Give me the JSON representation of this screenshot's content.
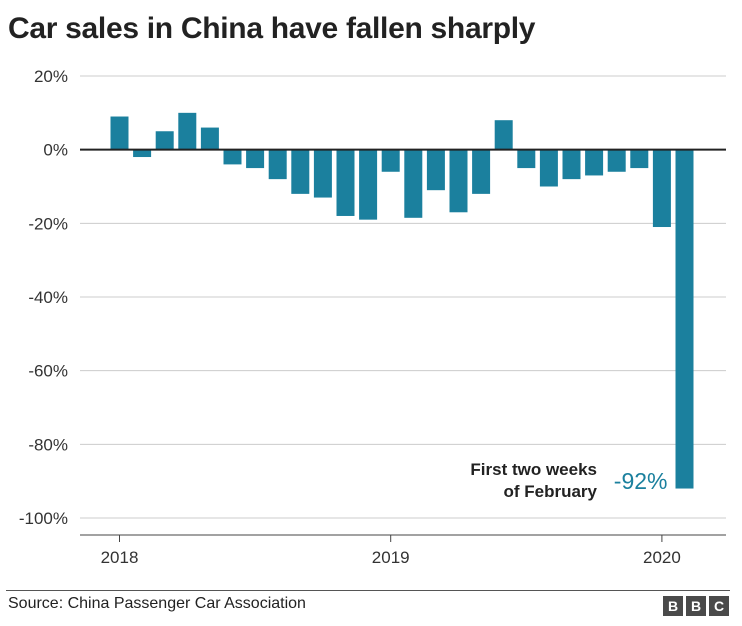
{
  "header": {
    "title": "Car sales in China have fallen sharply"
  },
  "colors": {
    "bar": "#1b809e",
    "zero_line": "#222222",
    "grid": "#cccccc",
    "annotation_value": "#1b809e"
  },
  "chart_data": {
    "type": "bar",
    "title": "Car sales in China have fallen sharply",
    "xlabel": "",
    "ylabel": "",
    "ylim": [
      -100,
      20
    ],
    "yticks": [
      20,
      0,
      -20,
      -40,
      -60,
      -80,
      -100
    ],
    "ytick_labels": [
      "20%",
      "0%",
      "-20%",
      "-40%",
      "-60%",
      "-80%",
      "-100%"
    ],
    "xtick_labels": [
      {
        "label": "2018",
        "at_index": 0
      },
      {
        "label": "2019",
        "at_index": 12
      },
      {
        "label": "2020",
        "at_index": 24
      }
    ],
    "categories": [
      "Jan 2018",
      "Feb 2018",
      "Mar 2018",
      "Apr 2018",
      "May 2018",
      "Jun 2018",
      "Jul 2018",
      "Aug 2018",
      "Sep 2018",
      "Oct 2018",
      "Nov 2018",
      "Dec 2018",
      "Jan 2019",
      "Feb 2019",
      "Mar 2019",
      "Apr 2019",
      "May 2019",
      "Jun 2019",
      "Jul 2019",
      "Aug 2019",
      "Sep 2019",
      "Oct 2019",
      "Nov 2019",
      "Dec 2019",
      "Jan 2020",
      "Feb 2020"
    ],
    "values": [
      9,
      -2,
      5,
      10,
      6,
      -4,
      -5,
      -8,
      -12,
      -13,
      -18,
      -19,
      -6,
      -18.5,
      -11,
      -17,
      -12,
      8,
      -5,
      -10,
      -8,
      -7,
      -6,
      -5,
      -21,
      -92
    ],
    "annotations": [
      {
        "target_index": 25,
        "text_lines": [
          "First two weeks",
          "of February"
        ],
        "value_label": "-92%"
      }
    ]
  },
  "footer": {
    "source": "Source: China Passenger Car Association",
    "logo_letters": [
      "B",
      "B",
      "C"
    ]
  }
}
